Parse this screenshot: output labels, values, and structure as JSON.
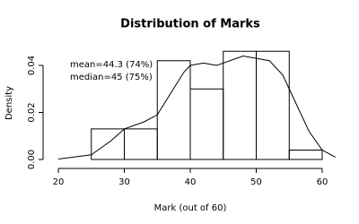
{
  "chart_data": {
    "type": "histogram",
    "title": "Distribution of Marks",
    "x_label": "Mark (out of 60)",
    "y_label": "Density",
    "bins": [
      25,
      30,
      35,
      40,
      45,
      50,
      55,
      60
    ],
    "values": [
      0.013,
      0.013,
      0.042,
      0.03,
      0.046,
      0.046,
      0.004
    ],
    "color": "#000000",
    "density": {
      "x": [
        20,
        25,
        28,
        30,
        33,
        35,
        37,
        39,
        40,
        42,
        44,
        46,
        48,
        50,
        52,
        54,
        56,
        58,
        60,
        62
      ],
      "values": [
        0.0002,
        0.002,
        0.008,
        0.013,
        0.016,
        0.019,
        0.028,
        0.037,
        0.04,
        0.041,
        0.04,
        0.042,
        0.044,
        0.043,
        0.042,
        0.036,
        0.024,
        0.012,
        0.004,
        0.001
      ]
    },
    "annotations": [
      "mean=44.3 (74%)",
      "median=45 (75%)"
    ],
    "xlim": [
      18,
      62
    ],
    "ylim": [
      0,
      0.048
    ],
    "xticks": [
      20,
      30,
      40,
      50,
      60
    ],
    "yticks": [
      {
        "value": 0,
        "label": "0.00"
      },
      0.02,
      0.04
    ]
  }
}
